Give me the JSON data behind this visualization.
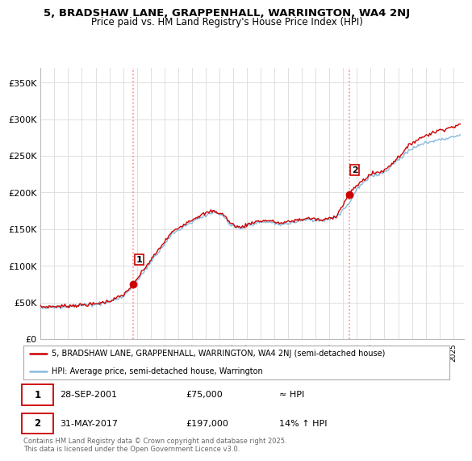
{
  "title_line1": "5, BRADSHAW LANE, GRAPPENHALL, WARRINGTON, WA4 2NJ",
  "title_line2": "Price paid vs. HM Land Registry's House Price Index (HPI)",
  "ylabel_ticks": [
    "£0",
    "£50K",
    "£100K",
    "£150K",
    "£200K",
    "£250K",
    "£300K",
    "£350K"
  ],
  "ytick_values": [
    0,
    50000,
    100000,
    150000,
    200000,
    250000,
    300000,
    350000
  ],
  "ylim": [
    0,
    370000
  ],
  "xlim_start": 1995.0,
  "xlim_end": 2025.8,
  "sale1_date": 2001.75,
  "sale1_price": 75000,
  "sale2_date": 2017.42,
  "sale2_price": 197000,
  "vline_color": "#ff8888",
  "property_line_color": "#cc0000",
  "hpi_line_color": "#88bbdd",
  "legend_label1": "5, BRADSHAW LANE, GRAPPENHALL, WARRINGTON, WA4 2NJ (semi-detached house)",
  "legend_label2": "HPI: Average price, semi-detached house, Warrington",
  "table_row1": [
    "1",
    "28-SEP-2001",
    "£75,000",
    "≈ HPI"
  ],
  "table_row2": [
    "2",
    "31-MAY-2017",
    "£197,000",
    "14% ↑ HPI"
  ],
  "footnote": "Contains HM Land Registry data © Crown copyright and database right 2025.\nThis data is licensed under the Open Government Licence v3.0.",
  "background_color": "#ffffff",
  "grid_color": "#e0e0e0"
}
